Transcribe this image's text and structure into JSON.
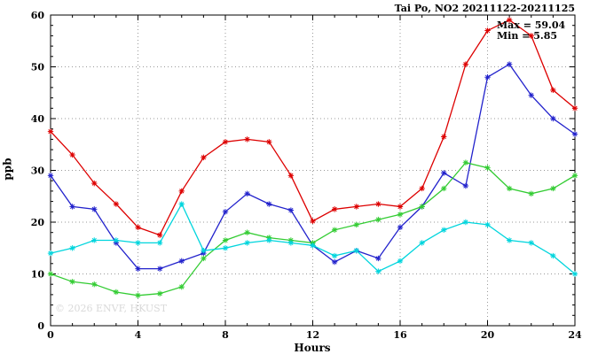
{
  "header": {
    "title": "Tai Po, NO2 20211122-20211125"
  },
  "annotation": {
    "max_label": "Max = 59.04",
    "min_label": "Min = 5.85"
  },
  "watermark": "© 2026 ENVF, HKUST",
  "axes": {
    "xlabel": "Hours",
    "ylabel": "ppb"
  },
  "chart_data": {
    "type": "line",
    "title": "Tai Po, NO2 20211122-20211125",
    "xlabel": "Hours",
    "ylabel": "ppb",
    "xlim": [
      0,
      24
    ],
    "ylim": [
      0,
      60
    ],
    "xticks": [
      0,
      4,
      8,
      12,
      16,
      20,
      24
    ],
    "yticks": [
      0,
      10,
      20,
      30,
      40,
      50,
      60
    ],
    "grid": true,
    "legend": "none",
    "marker": "asterisk",
    "max": 59.04,
    "min": 5.85,
    "x": [
      0,
      1,
      2,
      3,
      4,
      5,
      6,
      7,
      8,
      9,
      10,
      11,
      12,
      13,
      14,
      15,
      16,
      17,
      18,
      19,
      20,
      21,
      22,
      23,
      24
    ],
    "series": [
      {
        "name": "red",
        "color": "#dd0000",
        "values": [
          37.5,
          33,
          27.5,
          23.5,
          19,
          17.5,
          26,
          32.5,
          35.5,
          36,
          35.5,
          29,
          20.2,
          22.5,
          23,
          23.5,
          23,
          26.5,
          36.5,
          50.5,
          57,
          59.04,
          56,
          45.5,
          42
        ]
      },
      {
        "name": "blue",
        "color": "#2222cc",
        "values": [
          29,
          23,
          22.5,
          16,
          11,
          11,
          12.5,
          14,
          22,
          25.5,
          23.5,
          22.3,
          15.5,
          12.3,
          14.5,
          13,
          19,
          23,
          29.5,
          27,
          48,
          50.5,
          44.5,
          40,
          37
        ]
      },
      {
        "name": "green",
        "color": "#33cc33",
        "values": [
          10,
          8.5,
          8,
          6.5,
          5.85,
          6.2,
          7.5,
          13,
          16.5,
          18,
          17,
          16.5,
          16,
          18.5,
          19.5,
          20.5,
          21.5,
          23,
          26.5,
          31.5,
          30.5,
          26.5,
          25.5,
          26.5,
          29
        ]
      },
      {
        "name": "cyan",
        "color": "#00d5dd",
        "values": [
          14,
          15,
          16.5,
          16.5,
          16,
          16,
          23.5,
          14.5,
          15,
          16,
          16.5,
          16,
          15.5,
          13.5,
          14.5,
          10.5,
          12.5,
          16,
          18.5,
          20,
          19.5,
          16.5,
          16,
          13.5,
          10
        ]
      }
    ]
  }
}
